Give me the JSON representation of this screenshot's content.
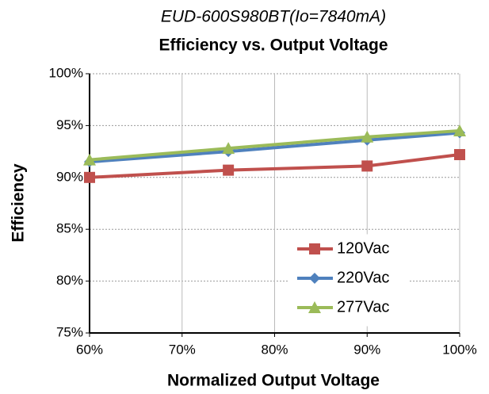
{
  "chart_data": {
    "type": "line",
    "title": "EUD-600S980BT(Io=7840mA)",
    "subtitle": "Efficiency vs. Output Voltage",
    "x_label": "Normalized Output Voltage",
    "y_label": "Efficiency",
    "x": [
      60,
      75,
      90,
      100
    ],
    "series": [
      {
        "name": "120Vac",
        "color": "#c0504d",
        "marker": "square",
        "values": [
          90.0,
          90.7,
          91.1,
          92.2
        ]
      },
      {
        "name": "220Vac",
        "color": "#4f81bd",
        "marker": "diamond",
        "values": [
          91.5,
          92.5,
          93.6,
          94.3
        ]
      },
      {
        "name": "277Vac",
        "color": "#9bbb59",
        "marker": "triangle",
        "values": [
          91.7,
          92.8,
          93.9,
          94.5
        ]
      }
    ],
    "xlim": [
      60,
      100
    ],
    "xticks": [
      {
        "value": 60,
        "label": "60%"
      },
      {
        "value": 70,
        "label": "70%"
      },
      {
        "value": 80,
        "label": "80%"
      },
      {
        "value": 90,
        "label": "90%"
      },
      {
        "value": 100,
        "label": "100%"
      }
    ],
    "ylim": [
      75,
      100
    ],
    "yticks": [
      {
        "value": 75,
        "label": "75%"
      },
      {
        "value": 80,
        "label": "80%"
      },
      {
        "value": 85,
        "label": "85%"
      },
      {
        "value": 90,
        "label": "90%"
      },
      {
        "value": 95,
        "label": "95%"
      },
      {
        "value": 100,
        "label": "100%"
      }
    ],
    "grid": true,
    "legend": "lower right"
  }
}
